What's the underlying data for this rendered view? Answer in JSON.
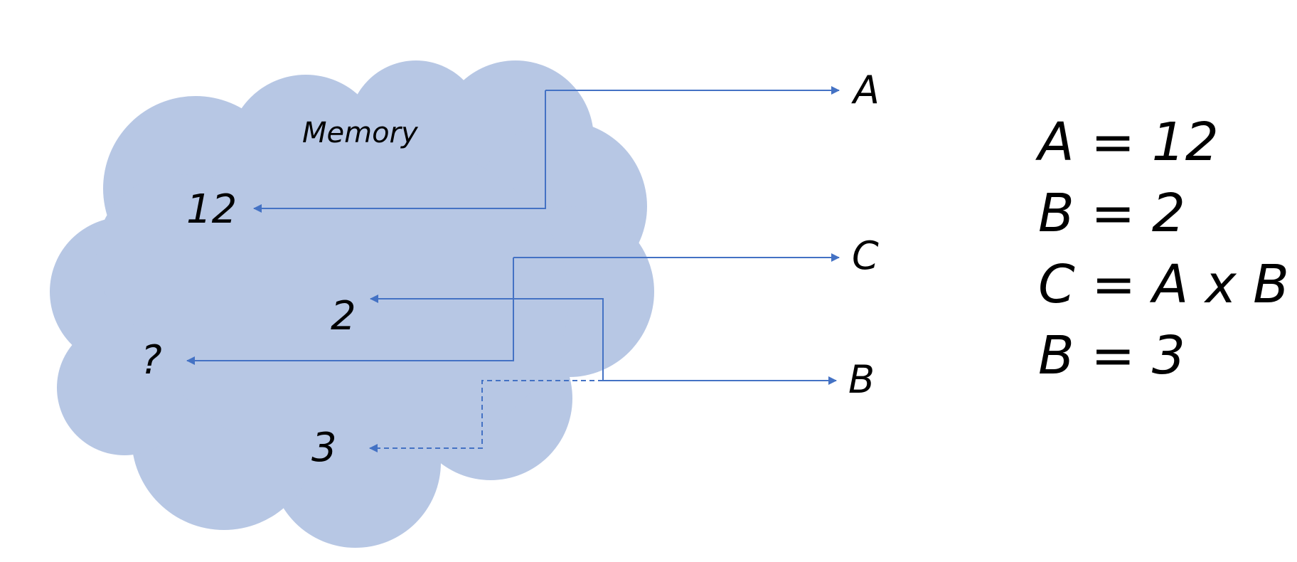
{
  "memory": {
    "label": "Memory",
    "cells": [
      {
        "id": "cell-12",
        "value": "12"
      },
      {
        "id": "cell-2",
        "value": "2"
      },
      {
        "id": "cell-unknown",
        "value": "?"
      },
      {
        "id": "cell-3",
        "value": "3"
      }
    ]
  },
  "variables": [
    {
      "id": "var-a",
      "name": "A"
    },
    {
      "id": "var-c",
      "name": "C"
    },
    {
      "id": "var-b",
      "name": "B"
    }
  ],
  "equations": [
    "A = 12",
    "B = 2",
    "C = A x B",
    "B = 3"
  ],
  "colors": {
    "cloud": "#b7c7e4",
    "connector": "#4472c4",
    "text": "#000000"
  }
}
